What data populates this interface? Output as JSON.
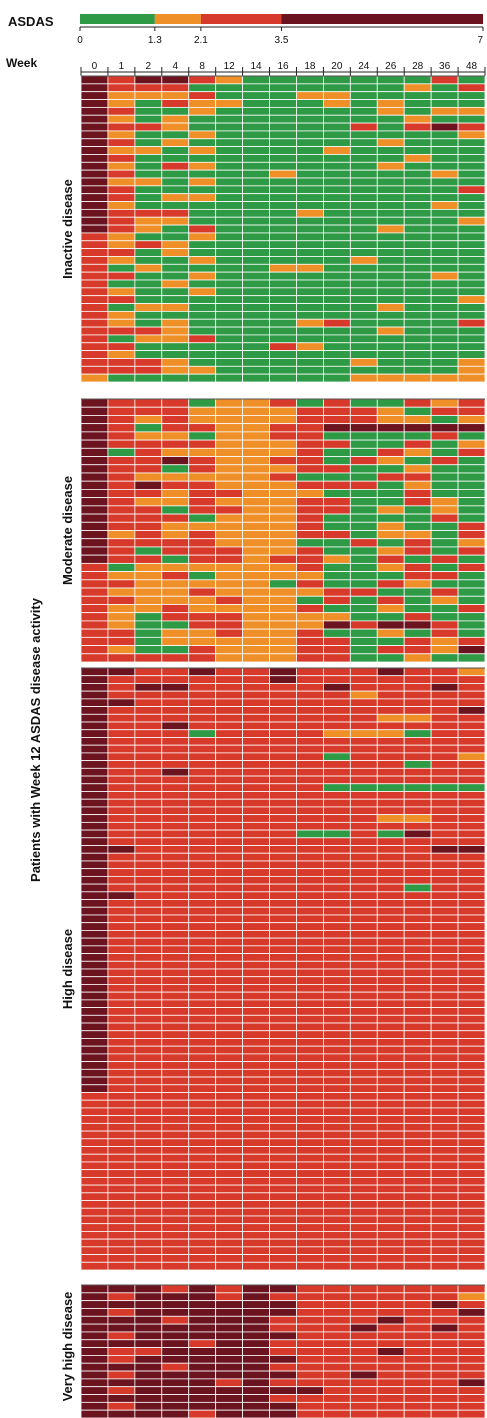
{
  "chart_data": {
    "type": "heatmap",
    "title": "",
    "legend": {
      "title": "ASDAS",
      "breaks": [
        0,
        1.3,
        2.1,
        3.5,
        7
      ],
      "tick_labels": [
        "0",
        "1.3",
        "2.1",
        "3.5",
        "7"
      ],
      "colors": [
        "#2e9a45",
        "#ee8f27",
        "#d73a2b",
        "#6b1420"
      ]
    },
    "xlabel": "Week",
    "weeks": [
      "0",
      "1",
      "2",
      "4",
      "8",
      "12",
      "14",
      "16",
      "18",
      "20",
      "24",
      "26",
      "28",
      "36",
      "48"
    ],
    "ylabel": "Patients with Week 12 ASDAS disease activity",
    "groups": [
      {
        "label": "Inactive disease",
        "rows": [
          "DRDDROGGGGGGGRG",
          "DRRRGGGGGGGGOGR",
          "DOOORGGGOOGGGGG",
          "DOGROOGGGOGOGGG",
          "DRGGOGGGGGGOGOO",
          "DOGOGGGGGGGGOGG",
          "DRROGGGGGGRGRDR",
          "DOGGOGGGGGGGGGO",
          "DRGOGGGGGGGOGGG",
          "DOOGOGGGGOGGGGG",
          "DRGGGGGGGGGGOGG",
          "DOGROGGGGGGOGGG",
          "DRGGGGGOGGGGGOG",
          "DOOGOGGGGGGGGGG",
          "DRGGGGGGGGGGGGR",
          "DRGOOGGGGGGGGGG",
          "DOGGGGGGGGGGGOG",
          "DRRRGGGGOGGGGGG",
          "DROOGGGGGGGGGGO",
          "DROGRGGGGGGOGGG",
          "ROGGOGGGGGGGGGG",
          "ROROGGGGGGGGGGG",
          "RRGOGGGGGGGGGGG",
          "ROGGOGGGGGOGGGG",
          "RGOGGGGOOGGGGGG",
          "RRGGOGGGGGGGGOG",
          "RGGOGGGGGGGGGGG",
          "ROGGOGGGGGGGGGG",
          "RRGGGGGGGGGGGGO",
          "RGOOGGGGGGGOGGG",
          "ROGGGGGGGGGGGGG",
          "ROGOGGGGORGGGGR",
          "RRROGGGGGGGOGGG",
          "RGOORGGGGGGGGGG",
          "RRGGGGGROGGGGGG",
          "ROGGGGGGGGGGGGG",
          "RRROGGGGGGOGGGO",
          "RRROOGGGGGGGGGO",
          "OGGGGGGGGGOOOOO"
        ]
      },
      {
        "label": "Moderate disease",
        "rows": [
          "DRRRGOORGRGGROR",
          "DRRROOOORRROGRR",
          "DROROOOORRROOGO",
          "DRGRROORRDDDDDD",
          "DROOGOORRGGGGRG",
          "DRRRROOORRGGRGO",
          "DGROOOOORGGROGR",
          "DRRDROORRGROGRG",
          "DRRGROOORRGGOGG",
          "DROOOOORGGGRRGG",
          "DRDRROOORRRGOGG",
          "DRRORROOOGGGRGG",
          "DROOROOORRGGROG",
          "DRRGRROORRGOGOG",
          "DRRRGOOORGGGGRG",
          "DRROOOOORGGOGGR",
          "DOROROOORRGOOGR",
          "DRRRROOOGGRGRGO",
          "DRGRRROORGGORGR",
          "DRRGRRORROGRGRG",
          "RGOOOOOORGGORGR",
          "ROORGOOOOGGGRRG",
          "RROOOOOGRGGROGG",
          "ROOOROOOORRGGRG",
          "RROOOROOGRGRGOG",
          "ROOROOOORGGOGGR",
          "ROGRRROOOOGGRGG",
          "ROGGRROOODRDDRG",
          "RRGOOROORGGOGRG",
          "RRGOOOOORRGGROR",
          "ROGGROOORRGRROD",
          "RRRRROOORRGGOGG"
        ]
      },
      {
        "label": "High disease",
        "rows": [
          "DDRRDRRDRRRDRRO",
          "DRRRRRRDRRRRRRR",
          "DRDDRRRRRDRRRDR",
          "DRRRRRRRRRORRRR",
          "DDRRRRRRRRRRRRR",
          "DRRRRRRRRRRRRRD",
          "DRRRRRRRRRROORR",
          "DRRDRRRRRRRRRRR",
          "DRRRGRRRROOOGRR",
          "DRRRRRRRRRRRRRR",
          "DRRRRRRRRRRRRRR",
          "DRRRRRRRRGRRRRO",
          "DRRRRRRRRRRRGRR",
          "DRRDRRRRRRRRRRR",
          "DRRRRRRRRRRRRRR",
          "DRRRRRRRRGGGGGG",
          "DRRRRRRRRRRRRRR",
          "DRRRRRRRRRRRRRR",
          "DRRRRRRRRRRRRRR",
          "DRRRRRRRRRROORR",
          "DRRRRRRRRRRRRRR",
          "DRRRRRRRGGRGDRR",
          "DRRRRRRRRRRRRRR",
          "DDRRRRRRRRRRRDD",
          "DRRRRRRRRRRRRRR",
          "DRRRRRRRRRRRRRR",
          "DRRRRRRRRRRRRRR",
          "DRRRRRRRRRRRRRR",
          "DRRRRRRRRRRRGRR",
          "DDRRRRRRRRRRRRR",
          "DRRRRRRRRRRRRRR",
          "DRRRRRRRRRRRRRR",
          "DRRRRRRRRRRRRRR",
          "DRRRRRRRRRRRRRR",
          "DRRRRRRRRRRRRRR",
          "DRRRRRRRRRRRRRR",
          "DRRRRRRRRRRRRRR",
          "DRRRRRRRRRRRRRR",
          "DRRRRRRRRRRRRRR",
          "DRRRRRRRRRRRRRR",
          "DRRRRRRRRRRRRRR",
          "DRRRRRRRRRRRRRR",
          "DRRRRRRRRRRRRRR",
          "DRRRRRRRRRRRRRR",
          "DRRRRRRRRRRRRRR",
          "DRRRRRRRRRRRRRR",
          "DRRRRRRRRRRRRRR",
          "DRRRRRRRRRRRRRR",
          "DRRRRRRRRRRRRRR",
          "DRRRRRRRRRRRRRR",
          "DRRRRRRRRRRRRRR",
          "DRRRRRRRRRRRRRR",
          "DRRRRRRRRRRRRRR",
          "DRRRRRRRRRRRRRR",
          "DRRRRRRRRRRRRRR",
          "RRRRRRRRRRRRRRR",
          "RRRRRRRRRRRRRRR",
          "RRRRRRRRRRRRRRR",
          "RRRRRRRRRRRRRRR",
          "RRRRRRRRRRRRRRR",
          "RRRRRRRRRRRRRRR",
          "RRRRRRRRRRRRRRR",
          "RRRRRRRRRRRRRRR",
          "RRRRRRRRRRRRRRR",
          "RRRRRRRRRRRRRRR",
          "RRRRRRRRRRRRRRR",
          "RRRRRRRRRRRRRRR",
          "RRRRRRRRRRRRRRR",
          "RRRRRRRRRRRRRRR",
          "RRRRRRRRRRRRRRR",
          "RRRRRRRRRRRRRRR",
          "RRRRRRRRRRRRRRR",
          "RRRRRRRRRRRRRRR",
          "RRRRRRRRRRRRRRR",
          "RRRRRRRRRRRRRRR",
          "RRRRRRRRRRRRRRR",
          "RRRRRRRRRRRRRRR",
          "RRRRRRRRRRRRRRR"
        ]
      },
      {
        "label": "Very high disease",
        "rows": [
          "DDDRDRDDRRRRRRR",
          "DRDDDRDRRRRRRRO",
          "DDDDDDDDRRRRRDR",
          "DRDDDDDDRRRRRRD",
          "DDDRDDDRRRRDRRR",
          "DDDDDDDRRRDRRDR",
          "DRDDDDDDRRRRRRR",
          "DDDDRDDRRRRRRRR",
          "DRRDDDDRRRRDRRR",
          "DRDDDDDDRRRRRRR",
          "DDDRDDDRRRRRRRR",
          "DRDDDDDDRRDRRRR",
          "DDDDDRDRRRRRRRD",
          "DRDDDDDDDRRRRRR",
          "DDDDDDDRRRRRRRR",
          "DRDDDDDDRRRRRRR",
          "DDDDRDDDRRRRRRR"
        ]
      }
    ]
  }
}
